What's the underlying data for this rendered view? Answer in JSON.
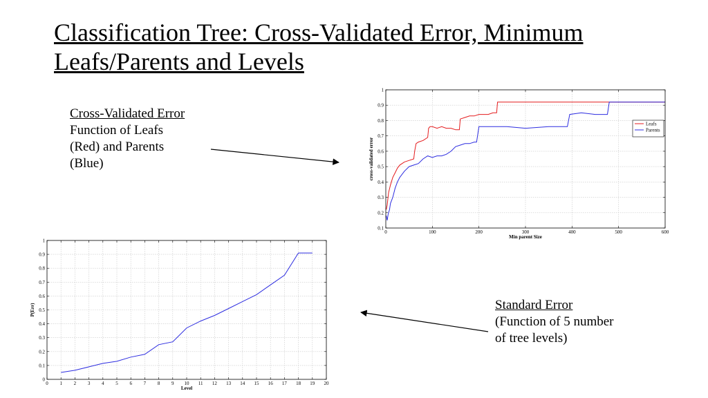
{
  "slide": {
    "title": "Classification Tree:  Cross-Validated Error, Minimum Leafs/Parents and Levels",
    "note1": {
      "heading": "Cross-Validated Error",
      "lines": [
        "Function of Leafs",
        "(Red) and Parents",
        "(Blue)"
      ]
    },
    "note2": {
      "heading": "Standard Error",
      "lines": [
        "(Function of 5 number",
        "of tree levels)"
      ]
    }
  },
  "chart_data": [
    {
      "type": "line",
      "title": "",
      "xlabel": "Min parent Size",
      "ylabel": "cross-validated error",
      "xlim": [
        0,
        600
      ],
      "ylim": [
        0.1,
        1
      ],
      "xticks": [
        0,
        100,
        200,
        300,
        400,
        500,
        600
      ],
      "yticks": [
        0.1,
        0.2,
        0.3,
        0.4,
        0.5,
        0.6,
        0.7,
        0.8,
        0.9,
        1
      ],
      "grid": true,
      "legend": "right",
      "series": [
        {
          "name": "Leafs",
          "color": "#e41a1c",
          "x": [
            1,
            3,
            6,
            10,
            15,
            20,
            25,
            30,
            40,
            50,
            60,
            62,
            65,
            70,
            80,
            90,
            92,
            95,
            100,
            110,
            120,
            130,
            140,
            150,
            158,
            160,
            170,
            180,
            190,
            200,
            210,
            220,
            230,
            238,
            240,
            260,
            300,
            400,
            476,
            480,
            600
          ],
          "y": [
            0.22,
            0.25,
            0.33,
            0.38,
            0.43,
            0.46,
            0.49,
            0.51,
            0.53,
            0.54,
            0.55,
            0.6,
            0.65,
            0.66,
            0.67,
            0.69,
            0.75,
            0.76,
            0.76,
            0.75,
            0.76,
            0.75,
            0.75,
            0.74,
            0.74,
            0.81,
            0.82,
            0.83,
            0.83,
            0.84,
            0.84,
            0.84,
            0.85,
            0.85,
            0.92,
            0.92,
            0.92,
            0.92,
            0.92,
            0.92,
            0.92
          ]
        },
        {
          "name": "Parents",
          "color": "#2c2ce0",
          "x": [
            1,
            3,
            5,
            8,
            10,
            15,
            20,
            25,
            30,
            40,
            50,
            60,
            70,
            80,
            90,
            100,
            110,
            120,
            130,
            140,
            150,
            160,
            170,
            180,
            190,
            195,
            200,
            210,
            230,
            260,
            300,
            350,
            390,
            395,
            420,
            450,
            470,
            476,
            480,
            600
          ],
          "y": [
            0.18,
            0.15,
            0.19,
            0.22,
            0.26,
            0.3,
            0.36,
            0.4,
            0.43,
            0.47,
            0.5,
            0.51,
            0.52,
            0.55,
            0.57,
            0.56,
            0.57,
            0.57,
            0.58,
            0.6,
            0.63,
            0.64,
            0.65,
            0.65,
            0.66,
            0.66,
            0.76,
            0.76,
            0.76,
            0.76,
            0.75,
            0.76,
            0.76,
            0.84,
            0.85,
            0.84,
            0.84,
            0.84,
            0.92,
            0.92
          ]
        }
      ]
    },
    {
      "type": "line",
      "title": "",
      "xlabel": "Level",
      "ylabel": "P(Err)",
      "xlim": [
        0,
        20
      ],
      "ylim": [
        0,
        1
      ],
      "xticks": [
        0,
        1,
        2,
        3,
        4,
        5,
        6,
        7,
        8,
        9,
        10,
        11,
        12,
        13,
        14,
        15,
        16,
        17,
        18,
        19,
        20
      ],
      "yticks": [
        0,
        0.1,
        0.2,
        0.3,
        0.4,
        0.5,
        0.6,
        0.7,
        0.8,
        0.9,
        1
      ],
      "grid": true,
      "series": [
        {
          "color": "#2c2ce0",
          "x": [
            1,
            2,
            3,
            4,
            5,
            6,
            7,
            8,
            9,
            10,
            11,
            12,
            13,
            14,
            15,
            16,
            17,
            18,
            19
          ],
          "y": [
            0.05,
            0.065,
            0.09,
            0.115,
            0.13,
            0.16,
            0.18,
            0.25,
            0.27,
            0.37,
            0.42,
            0.46,
            0.51,
            0.56,
            0.61,
            0.68,
            0.75,
            0.91,
            0.91
          ]
        }
      ]
    }
  ]
}
